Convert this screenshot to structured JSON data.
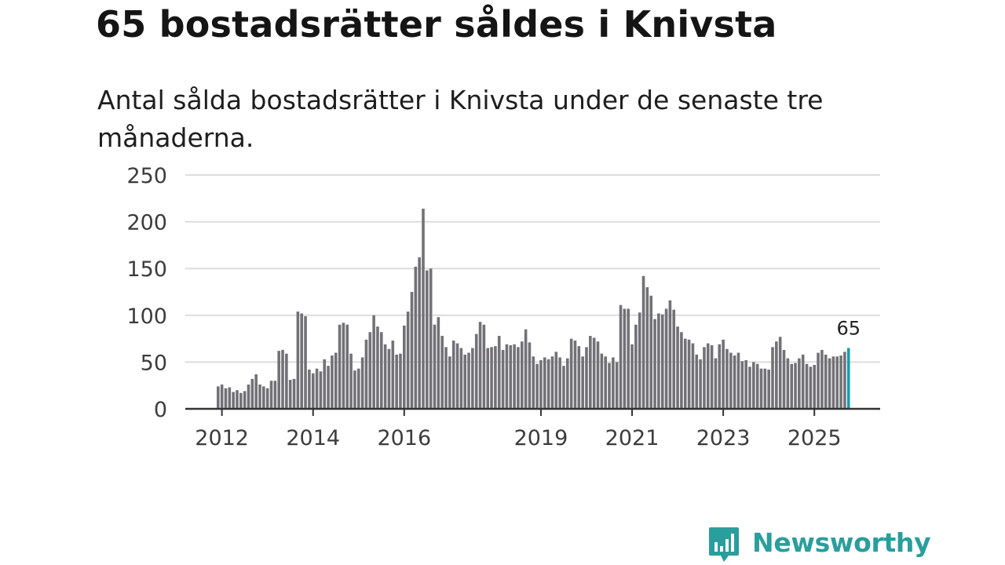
{
  "title": "65 bostadsrätter såldes i Knivsta",
  "subtitle": "Antal sålda bostadsrätter i Knivsta under de senaste tre månaderna.",
  "brand": {
    "name": "Newsworthy",
    "icon": "newsworthy-bar-chart-icon",
    "color": "#2a9e9c"
  },
  "colors": {
    "bar": "#727176",
    "highlight": "#169eab",
    "grid": "#dcdcdc",
    "axis": "#333333"
  },
  "chart_data": {
    "type": "bar",
    "title": "65 bostadsrätter såldes i Knivsta",
    "xlabel": "",
    "ylabel": "",
    "ylim": [
      0,
      250
    ],
    "yticks": [
      "0",
      "50",
      "100",
      "150",
      "200",
      "250"
    ],
    "grid": true,
    "xticks": [
      {
        "label": "2012",
        "index": 1
      },
      {
        "label": "2014",
        "index": 25
      },
      {
        "label": "2016",
        "index": 49
      },
      {
        "label": "2019",
        "index": 85
      },
      {
        "label": "2021",
        "index": 109
      },
      {
        "label": "2023",
        "index": 133
      },
      {
        "label": "2025",
        "index": 157
      }
    ],
    "highlight": {
      "label": "65",
      "value": 65
    },
    "series": [
      {
        "name": "Antal sålda bostadsrätter",
        "values": [
          24,
          26,
          22,
          23,
          18,
          20,
          17,
          19,
          26,
          32,
          37,
          26,
          24,
          22,
          30,
          30,
          62,
          63,
          59,
          31,
          32,
          104,
          102,
          99,
          42,
          38,
          43,
          40,
          53,
          46,
          57,
          60,
          90,
          92,
          90,
          59,
          41,
          43,
          55,
          74,
          82,
          100,
          88,
          82,
          69,
          64,
          73,
          58,
          59,
          89,
          104,
          125,
          152,
          162,
          214,
          148,
          150,
          90,
          98,
          78,
          66,
          56,
          73,
          70,
          65,
          58,
          60,
          65,
          80,
          93,
          90,
          65,
          66,
          67,
          78,
          63,
          69,
          68,
          69,
          66,
          72,
          85,
          71,
          56,
          48,
          52,
          55,
          53,
          56,
          61,
          55,
          46,
          54,
          75,
          73,
          67,
          56,
          66,
          78,
          76,
          72,
          59,
          56,
          49,
          55,
          50,
          111,
          107,
          107,
          69,
          90,
          103,
          142,
          130,
          121,
          96,
          102,
          101,
          107,
          116,
          106,
          88,
          82,
          75,
          74,
          70,
          58,
          53,
          66,
          70,
          68,
          54,
          69,
          74,
          64,
          60,
          57,
          60,
          51,
          52,
          45,
          50,
          48,
          43,
          43,
          42,
          66,
          72,
          77,
          63,
          54,
          48,
          49,
          54,
          58,
          48,
          45,
          47,
          60,
          63,
          58,
          54,
          56,
          56,
          57,
          61,
          65
        ]
      }
    ]
  }
}
